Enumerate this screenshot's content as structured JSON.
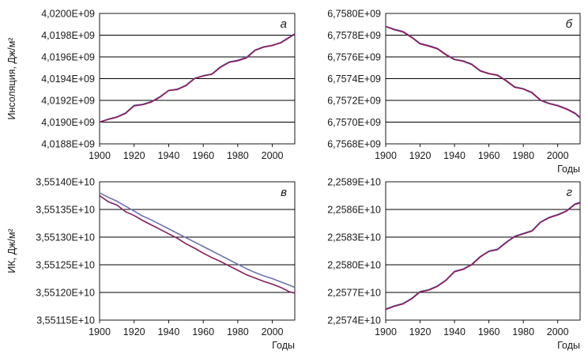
{
  "colors": {
    "series_a": "#8b1a5a",
    "series_b": "#6c72b0",
    "grid": "#000000",
    "frame": "#000000"
  },
  "chart_data": [
    {
      "type": "line",
      "panel_label": "а",
      "ylabel": "Инсоляция, Дж/м²",
      "xlabel": "",
      "xlim": [
        1900,
        2013
      ],
      "ylim": [
        4018800000,
        4020000000
      ],
      "grid": "horizontal",
      "x_ticks": [
        "1900",
        "1920",
        "1940",
        "1960",
        "1980",
        "2000"
      ],
      "y_ticks": [
        "4,0200E+09",
        "4,0198E+09",
        "4,0196E+09",
        "4,0194E+09",
        "4,0192E+09",
        "4,0190E+09",
        "4,0188E+09"
      ],
      "x": [
        1900,
        1905,
        1910,
        1915,
        1920,
        1925,
        1930,
        1935,
        1940,
        1945,
        1950,
        1955,
        1960,
        1965,
        1970,
        1975,
        1980,
        1985,
        1990,
        1995,
        2000,
        2005,
        2010,
        2013
      ],
      "series": [
        {
          "color": "#8b1a5a",
          "values": [
            4019000000,
            4019025000,
            4019045000,
            4019080000,
            4019150000,
            4019160000,
            4019185000,
            4019230000,
            4019290000,
            4019300000,
            4019335000,
            4019400000,
            4019425000,
            4019440000,
            4019505000,
            4019550000,
            4019565000,
            4019590000,
            4019660000,
            4019690000,
            4019705000,
            4019730000,
            4019780000,
            4019810000
          ]
        },
        {
          "color": "#6c72b0",
          "values": [
            4019000000,
            4019028000,
            4019048000,
            4019085000,
            4019155000,
            4019164000,
            4019190000,
            4019235000,
            4019292000,
            4019304000,
            4019340000,
            4019404000,
            4019428000,
            4019444000,
            4019510000,
            4019554000,
            4019570000,
            4019596000,
            4019664000,
            4019694000,
            4019708000,
            4019734000,
            4019784000,
            4019813000
          ]
        }
      ]
    },
    {
      "type": "line",
      "panel_label": "б",
      "ylabel": "",
      "xlabel": "Годы",
      "xlim": [
        1900,
        2013
      ],
      "ylim": [
        6756800000,
        6758000000
      ],
      "grid": "horizontal",
      "x_ticks": [
        "1900",
        "1920",
        "1940",
        "1960",
        "1980",
        "2000"
      ],
      "y_ticks": [
        "6,7580E+09",
        "6,7578E+09",
        "6,7576E+09",
        "6,7574E+09",
        "6,7572E+09",
        "6,7570E+09",
        "6,7568E+09"
      ],
      "x": [
        1900,
        1905,
        1910,
        1915,
        1920,
        1925,
        1930,
        1935,
        1940,
        1945,
        1950,
        1955,
        1960,
        1965,
        1970,
        1975,
        1980,
        1985,
        1990,
        1995,
        2000,
        2005,
        2010,
        2013
      ],
      "series": [
        {
          "color": "#8b1a5a",
          "values": [
            6757880000,
            6757850000,
            6757830000,
            6757780000,
            6757720000,
            6757700000,
            6757675000,
            6757620000,
            6757575000,
            6757560000,
            6757530000,
            6757470000,
            6757445000,
            6757430000,
            6757380000,
            6757320000,
            6757305000,
            6757270000,
            6757200000,
            6757170000,
            6757150000,
            6757120000,
            6757080000,
            6757040000
          ]
        },
        {
          "color": "#6c72b0",
          "values": [
            6757882000,
            6757855000,
            6757835000,
            6757785000,
            6757725000,
            6757704000,
            6757680000,
            6757625000,
            6757578000,
            6757564000,
            6757535000,
            6757474000,
            6757448000,
            6757434000,
            6757385000,
            6757325000,
            6757308000,
            6757275000,
            6757204000,
            6757174000,
            6757154000,
            6757124000,
            6757084000,
            6757045000
          ]
        }
      ]
    },
    {
      "type": "line",
      "panel_label": "в",
      "ylabel": "ИК, Дж/м²",
      "xlabel": "Годы",
      "xlim": [
        1900,
        2013
      ],
      "ylim": [
        35511500000,
        35514000000
      ],
      "grid": "horizontal",
      "x_ticks": [
        "1900",
        "1920",
        "1940",
        "1960",
        "1980",
        "2000"
      ],
      "y_ticks": [
        "3,55140E+10",
        "3,55135E+10",
        "3,55130E+10",
        "3,55125E+10",
        "3,55120E+10",
        "3,55115E+10"
      ],
      "x": [
        1900,
        1905,
        1910,
        1915,
        1920,
        1925,
        1930,
        1935,
        1940,
        1945,
        1950,
        1955,
        1960,
        1965,
        1970,
        1975,
        1980,
        1985,
        1990,
        1995,
        2000,
        2005,
        2010,
        2013
      ],
      "series": [
        {
          "color": "#8b1a5a",
          "values": [
            35513750000,
            35513640000,
            35513580000,
            35513460000,
            35513390000,
            35513300000,
            35513220000,
            35513140000,
            35513060000,
            35512980000,
            35512880000,
            35512800000,
            35512710000,
            35512630000,
            35512560000,
            35512480000,
            35512400000,
            35512320000,
            35512260000,
            35512200000,
            35512150000,
            35512090000,
            35512010000,
            35511990000
          ]
        },
        {
          "color": "#6c72b0",
          "values": [
            35513800000,
            35513720000,
            35513650000,
            35513560000,
            35513470000,
            35513380000,
            35513310000,
            35513230000,
            35513150000,
            35513070000,
            35512990000,
            35512910000,
            35512830000,
            35512750000,
            35512670000,
            35512590000,
            35512510000,
            35512430000,
            35512360000,
            35512300000,
            35512250000,
            35512190000,
            35512130000,
            35512090000
          ]
        }
      ]
    },
    {
      "type": "line",
      "panel_label": "г",
      "ylabel": "",
      "xlabel": "Годы",
      "xlim": [
        1900,
        2013
      ],
      "ylim": [
        22574000000,
        22589000000
      ],
      "grid": "horizontal",
      "x_ticks": [
        "1900",
        "1920",
        "1940",
        "1960",
        "1980",
        "2000"
      ],
      "y_ticks": [
        "2,2589E+10",
        "2,2586E+10",
        "2,2583E+10",
        "2,2580E+10",
        "2,2577E+10",
        "2,2574E+10"
      ],
      "x": [
        1900,
        1905,
        1910,
        1915,
        1920,
        1925,
        1930,
        1935,
        1940,
        1945,
        1950,
        1955,
        1960,
        1965,
        1970,
        1975,
        1980,
        1985,
        1990,
        1995,
        2000,
        2005,
        2010,
        2013
      ],
      "series": [
        {
          "color": "#8b1a5a",
          "values": [
            22575150000,
            22575500000,
            22575750000,
            22576300000,
            22577050000,
            22577250000,
            22577650000,
            22578300000,
            22579250000,
            22579500000,
            22580000000,
            22580850000,
            22581450000,
            22581650000,
            22582400000,
            22583050000,
            22583350000,
            22583650000,
            22584600000,
            22585100000,
            22585400000,
            22585800000,
            22586550000,
            22586700000
          ]
        },
        {
          "color": "#6c72b0",
          "values": [
            22575200000,
            22575550000,
            22575800000,
            22576350000,
            22577100000,
            22577300000,
            22577700000,
            22578350000,
            22579300000,
            22579550000,
            22580050000,
            22580900000,
            22581500000,
            22581700000,
            22582450000,
            22583100000,
            22583400000,
            22583700000,
            22584650000,
            22585150000,
            22585450000,
            22585850000,
            22586600000,
            22586800000
          ]
        }
      ]
    }
  ]
}
